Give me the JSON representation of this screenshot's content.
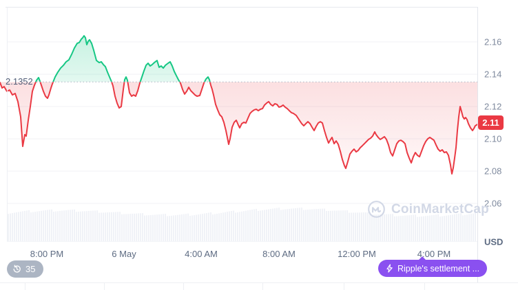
{
  "widget": {
    "watermark_text": "CoinMarketCap",
    "baseline_price_label": "2.1352",
    "current_price_label": "2.11",
    "currency_label": "USD",
    "history_badge_count": "35",
    "news_button_label": "Ripple's settlement ...",
    "colors": {
      "up": "#16c784",
      "down": "#ea3943",
      "price_badge": "#ea3943",
      "news_button": "#8a50f0",
      "axis_text": "#7f8a9e",
      "watermark": "#d2d8e6",
      "gridline": "#f0f2f6",
      "volume_bar": "#f0f2f7"
    }
  },
  "chart_data": {
    "type": "line",
    "title": "",
    "ylabel": "USD",
    "ylim": [
      2.05,
      2.17
    ],
    "y_ticks": [
      2.16,
      2.14,
      2.12,
      2.1,
      2.08,
      2.06
    ],
    "x_tick_labels": [
      "8:00 PM",
      "6 May",
      "4:00 AM",
      "8:00 AM",
      "12:00 PM",
      "4:00 PM"
    ],
    "baseline_value": 2.1352,
    "last_value": 2.11,
    "grid": true,
    "legend": false,
    "series": [
      {
        "name": "price_usd",
        "points": [
          [
            0,
            2.1349
          ],
          [
            3,
            2.1315
          ],
          [
            6,
            2.1323
          ],
          [
            10,
            2.1294
          ],
          [
            14,
            2.1302
          ],
          [
            18,
            2.1272
          ],
          [
            22,
            2.1281
          ],
          [
            26,
            2.123
          ],
          [
            30,
            2.1136
          ],
          [
            33,
            2.0953
          ],
          [
            36,
            2.1026
          ],
          [
            38,
            2.1017
          ],
          [
            41,
            2.1115
          ],
          [
            44,
            2.12
          ],
          [
            47,
            2.1294
          ],
          [
            50,
            2.1332
          ],
          [
            53,
            2.1362
          ],
          [
            56,
            2.1379
          ],
          [
            58,
            2.1357
          ],
          [
            60,
            2.1332
          ],
          [
            63,
            2.1294
          ],
          [
            66,
            2.1264
          ],
          [
            69,
            2.1251
          ],
          [
            71,
            2.1272
          ],
          [
            74,
            2.1315
          ],
          [
            76,
            2.134
          ],
          [
            80,
            2.1383
          ],
          [
            84,
            2.1413
          ],
          [
            88,
            2.1438
          ],
          [
            92,
            2.1455
          ],
          [
            96,
            2.1477
          ],
          [
            100,
            2.1489
          ],
          [
            104,
            2.1523
          ],
          [
            108,
            2.1562
          ],
          [
            112,
            2.1591
          ],
          [
            115,
            2.1596
          ],
          [
            118,
            2.1617
          ],
          [
            120,
            2.1626
          ],
          [
            122,
            2.1638
          ],
          [
            124,
            2.1626
          ],
          [
            126,
            2.1583
          ],
          [
            128,
            2.1604
          ],
          [
            130,
            2.1613
          ],
          [
            133,
            2.1591
          ],
          [
            136,
            2.1549
          ],
          [
            140,
            2.1485
          ],
          [
            144,
            2.1472
          ],
          [
            147,
            2.1477
          ],
          [
            150,
            2.146
          ],
          [
            153,
            2.1447
          ],
          [
            156,
            2.1413
          ],
          [
            159,
            2.1383
          ],
          [
            162,
            2.1353
          ],
          [
            164,
            2.1328
          ],
          [
            167,
            2.1264
          ],
          [
            170,
            2.1221
          ],
          [
            173,
            2.1191
          ],
          [
            176,
            2.12
          ],
          [
            179,
            2.1306
          ],
          [
            181,
            2.1366
          ],
          [
            183,
            2.1383
          ],
          [
            185,
            2.1362
          ],
          [
            188,
            2.1285
          ],
          [
            191,
            2.1264
          ],
          [
            194,
            2.1272
          ],
          [
            197,
            2.1264
          ],
          [
            200,
            2.1298
          ],
          [
            203,
            2.1345
          ],
          [
            206,
            2.1383
          ],
          [
            209,
            2.1421
          ],
          [
            212,
            2.1455
          ],
          [
            215,
            2.1468
          ],
          [
            218,
            2.1451
          ],
          [
            221,
            2.146
          ],
          [
            224,
            2.1472
          ],
          [
            228,
            2.1485
          ],
          [
            231,
            2.1443
          ],
          [
            234,
            2.1451
          ],
          [
            237,
            2.1438
          ],
          [
            240,
            2.1455
          ],
          [
            244,
            2.1468
          ],
          [
            247,
            2.1477
          ],
          [
            250,
            2.1451
          ],
          [
            253,
            2.1417
          ],
          [
            256,
            2.1391
          ],
          [
            259,
            2.1366
          ],
          [
            262,
            2.1345
          ],
          [
            265,
            2.1306
          ],
          [
            268,
            2.1277
          ],
          [
            271,
            2.1294
          ],
          [
            274,
            2.1319
          ],
          [
            277,
            2.1298
          ],
          [
            280,
            2.1285
          ],
          [
            283,
            2.1272
          ],
          [
            286,
            2.1264
          ],
          [
            290,
            2.1268
          ],
          [
            293,
            2.1306
          ],
          [
            296,
            2.1345
          ],
          [
            299,
            2.137
          ],
          [
            302,
            2.1383
          ],
          [
            304,
            2.1366
          ],
          [
            306,
            2.1332
          ],
          [
            308,
            2.1306
          ],
          [
            310,
            2.1272
          ],
          [
            313,
            2.1213
          ],
          [
            316,
            2.1179
          ],
          [
            319,
            2.1149
          ],
          [
            322,
            2.1136
          ],
          [
            325,
            2.1102
          ],
          [
            328,
            2.1051
          ],
          [
            330,
            2.1009
          ],
          [
            332,
            2.0966
          ],
          [
            334,
            2.1
          ],
          [
            337,
            2.1072
          ],
          [
            340,
            2.1102
          ],
          [
            343,
            2.1115
          ],
          [
            346,
            2.1085
          ],
          [
            348,
            2.1068
          ],
          [
            351,
            2.1094
          ],
          [
            354,
            2.1102
          ],
          [
            357,
            2.1098
          ],
          [
            360,
            2.1128
          ],
          [
            363,
            2.1157
          ],
          [
            366,
            2.117
          ],
          [
            369,
            2.1179
          ],
          [
            372,
            2.1183
          ],
          [
            375,
            2.1174
          ],
          [
            378,
            2.1183
          ],
          [
            381,
            2.1187
          ],
          [
            384,
            2.1209
          ],
          [
            387,
            2.1221
          ],
          [
            390,
            2.123
          ],
          [
            393,
            2.1213
          ],
          [
            396,
            2.1204
          ],
          [
            399,
            2.1217
          ],
          [
            402,
            2.1213
          ],
          [
            405,
            2.1196
          ],
          [
            408,
            2.12
          ],
          [
            411,
            2.1209
          ],
          [
            414,
            2.1196
          ],
          [
            417,
            2.1187
          ],
          [
            420,
            2.1174
          ],
          [
            423,
            2.1162
          ],
          [
            426,
            2.1157
          ],
          [
            430,
            2.1145
          ],
          [
            434,
            2.1119
          ],
          [
            438,
            2.1094
          ],
          [
            441,
            2.1081
          ],
          [
            444,
            2.1094
          ],
          [
            447,
            2.1106
          ],
          [
            450,
            2.1094
          ],
          [
            453,
            2.1072
          ],
          [
            456,
            2.1051
          ],
          [
            459,
            2.1077
          ],
          [
            462,
            2.1098
          ],
          [
            465,
            2.1106
          ],
          [
            468,
            2.1098
          ],
          [
            471,
            2.1051
          ],
          [
            474,
            2.1009
          ],
          [
            477,
            2.0974
          ],
          [
            480,
            2.0996
          ],
          [
            482,
            2.1009
          ],
          [
            485,
            2.097
          ],
          [
            488,
            2.0987
          ],
          [
            491,
            2.0966
          ],
          [
            494,
            2.0923
          ],
          [
            497,
            2.0872
          ],
          [
            500,
            2.0834
          ],
          [
            502,
            2.0817
          ],
          [
            505,
            2.086
          ],
          [
            508,
            2.0906
          ],
          [
            511,
            2.0923
          ],
          [
            514,
            2.0936
          ],
          [
            517,
            2.0919
          ],
          [
            520,
            2.0928
          ],
          [
            523,
            2.0945
          ],
          [
            526,
            2.0957
          ],
          [
            529,
            2.097
          ],
          [
            532,
            2.0983
          ],
          [
            535,
            2.0996
          ],
          [
            538,
            2.1004
          ],
          [
            541,
            2.1017
          ],
          [
            544,
            2.1043
          ],
          [
            546,
            2.1026
          ],
          [
            549,
            2.1009
          ],
          [
            552,
            2.0996
          ],
          [
            555,
            2.1004
          ],
          [
            558,
            2.1013
          ],
          [
            561,
            2.0996
          ],
          [
            564,
            2.0962
          ],
          [
            567,
            2.0915
          ],
          [
            570,
            2.0894
          ],
          [
            573,
            2.0932
          ],
          [
            576,
            2.097
          ],
          [
            579,
            2.0987
          ],
          [
            582,
            2.0991
          ],
          [
            585,
            2.0983
          ],
          [
            588,
            2.097
          ],
          [
            591,
            2.0915
          ],
          [
            594,
            2.0881
          ],
          [
            597,
            2.0851
          ],
          [
            600,
            2.0889
          ],
          [
            603,
            2.0915
          ],
          [
            606,
            2.0898
          ],
          [
            609,
            2.0889
          ],
          [
            612,
            2.0923
          ],
          [
            615,
            2.0957
          ],
          [
            618,
            2.0983
          ],
          [
            621,
            2.1
          ],
          [
            624,
            2.1009
          ],
          [
            627,
            2.1
          ],
          [
            630,
            2.0991
          ],
          [
            633,
            2.0962
          ],
          [
            636,
            2.0936
          ],
          [
            639,
            2.0923
          ],
          [
            642,
            2.0932
          ],
          [
            645,
            2.0915
          ],
          [
            648,
            2.0919
          ],
          [
            651,
            2.0898
          ],
          [
            654,
            2.0838
          ],
          [
            656,
            2.0783
          ],
          [
            658,
            2.0821
          ],
          [
            660,
            2.0881
          ],
          [
            662,
            2.0945
          ],
          [
            664,
            2.1051
          ],
          [
            666,
            2.1136
          ],
          [
            668,
            2.12
          ],
          [
            670,
            2.117
          ],
          [
            672,
            2.1136
          ],
          [
            674,
            2.1123
          ],
          [
            676,
            2.1132
          ],
          [
            678,
            2.1119
          ],
          [
            680,
            2.1094
          ],
          [
            683,
            2.1068
          ],
          [
            686,
            2.1051
          ],
          [
            688,
            2.1064
          ],
          [
            690,
            2.1081
          ],
          [
            693,
            2.1089
          ]
        ]
      }
    ]
  }
}
